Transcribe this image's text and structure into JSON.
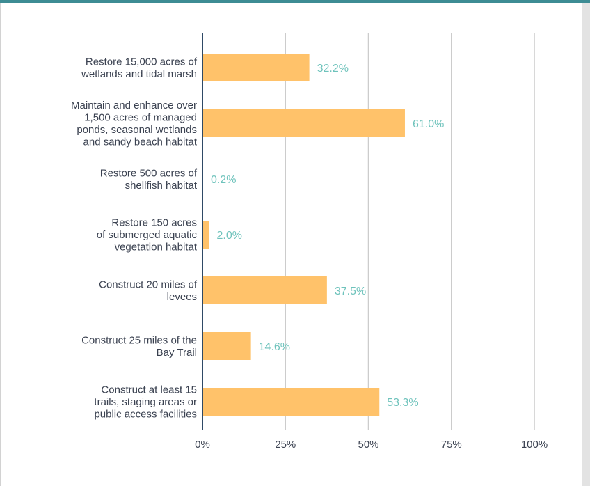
{
  "chart_data": {
    "type": "bar",
    "orientation": "horizontal",
    "categories": [
      [
        "Restore 15,000 acres of",
        "wetlands and tidal marsh"
      ],
      [
        "Maintain and enhance over",
        "1,500 acres of managed",
        "ponds, seasonal wetlands",
        "and sandy beach habitat"
      ],
      [
        "Restore 500 acres of",
        "shellfish habitat"
      ],
      [
        "Restore 150 acres",
        "of submerged aquatic",
        "vegetation habitat"
      ],
      [
        "Construct 20 miles of",
        "levees"
      ],
      [
        "Construct 25 miles of the",
        "Bay Trail"
      ],
      [
        "Construct at least 15",
        "trails, staging areas or",
        "public access facilities"
      ]
    ],
    "values": [
      32.2,
      61.0,
      0.2,
      2.0,
      37.5,
      14.6,
      53.3
    ],
    "value_labels": [
      "32.2%",
      "61.0%",
      "0.2%",
      "2.0%",
      "37.5%",
      "14.6%",
      "53.3%"
    ],
    "xlim": [
      0,
      100
    ],
    "xticks": [
      0,
      25,
      50,
      75,
      100
    ],
    "xtick_labels": [
      "0%",
      "25%",
      "50%",
      "75%",
      "100%"
    ],
    "grid": "vertical",
    "title": "",
    "xlabel": "",
    "ylabel": ""
  },
  "colors": {
    "bar": "#ffc26a",
    "value_label": "#6fc3bc",
    "grid": "#cccccc",
    "axis": "#2f4a66",
    "text": "#3a4150",
    "top_band": "#3d8c94"
  }
}
